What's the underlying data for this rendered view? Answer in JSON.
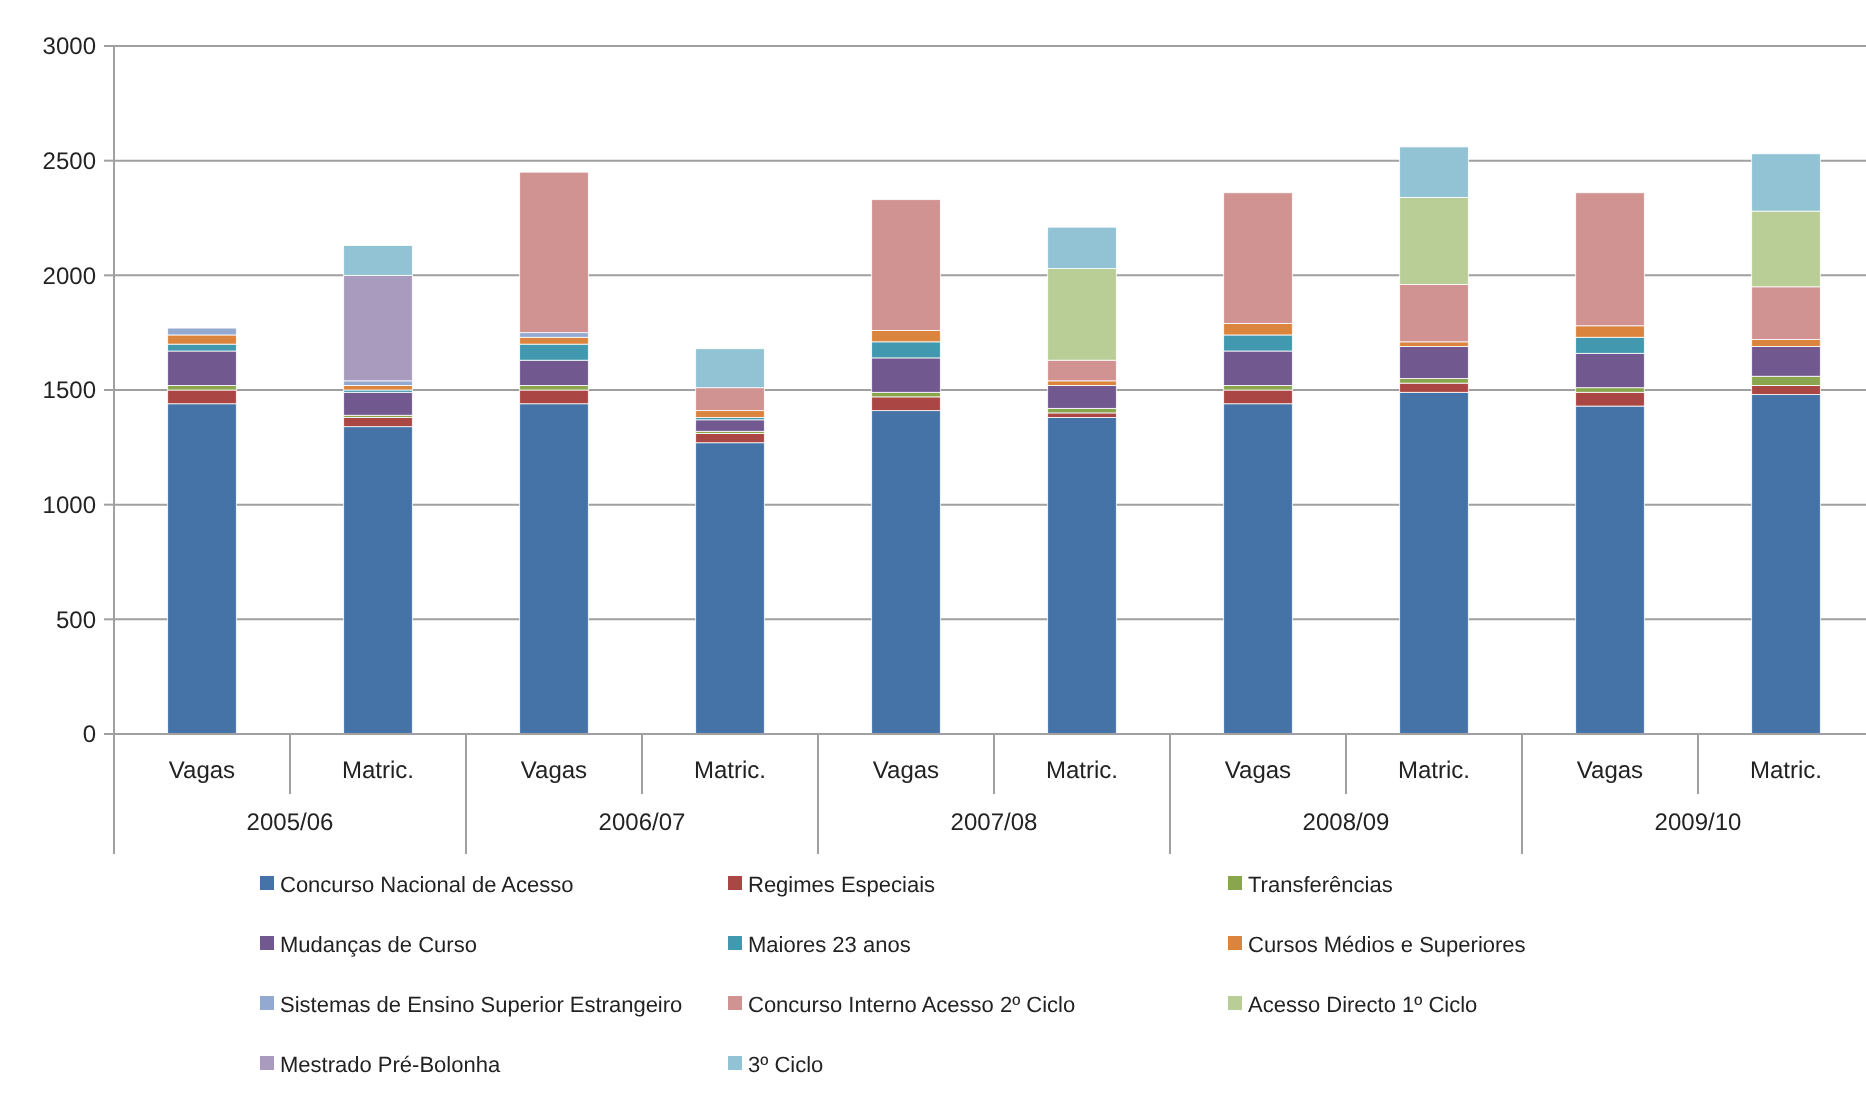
{
  "chart_data": {
    "type": "bar",
    "stacked": true,
    "categories": [
      "Vagas",
      "Matric.",
      "Vagas",
      "Matric.",
      "Vagas",
      "Matric.",
      "Vagas",
      "Matric.",
      "Vagas",
      "Matric."
    ],
    "annotations": [
      "2005/06",
      "2006/07",
      "2007/08",
      "2008/09",
      "2009/10"
    ],
    "ylim": [
      0,
      3000
    ],
    "yticks": [
      0,
      500,
      1000,
      1500,
      2000,
      2500,
      3000
    ],
    "grid": "y",
    "legend": "bottom",
    "series": [
      {
        "name": "Concurso Nacional de Acesso",
        "color": "#4572a7",
        "values": [
          1440,
          1340,
          1440,
          1270,
          1410,
          1380,
          1440,
          1490,
          1430,
          1480
        ]
      },
      {
        "name": "Regimes Especiais",
        "color": "#aa4643",
        "values": [
          60,
          40,
          60,
          40,
          60,
          20,
          60,
          40,
          60,
          40
        ]
      },
      {
        "name": "Transferências",
        "color": "#89a54e",
        "values": [
          20,
          10,
          20,
          10,
          20,
          20,
          20,
          20,
          20,
          40
        ]
      },
      {
        "name": "Mudanças de Curso",
        "color": "#71588f",
        "values": [
          150,
          100,
          110,
          50,
          150,
          100,
          150,
          140,
          150,
          130
        ]
      },
      {
        "name": "Maiores 23 anos",
        "color": "#4198af",
        "values": [
          30,
          10,
          70,
          10,
          70,
          null,
          70,
          null,
          70,
          null
        ]
      },
      {
        "name": "Cursos Médios e Superiores",
        "color": "#db843d",
        "values": [
          40,
          20,
          30,
          30,
          50,
          20,
          50,
          20,
          50,
          30
        ]
      },
      {
        "name": "Sistemas de Ensino Superior Estrangeiro",
        "color": "#93a9cf",
        "values": [
          30,
          20,
          20,
          null,
          null,
          null,
          null,
          null,
          null,
          null
        ]
      },
      {
        "name": "Concurso Interno Acesso 2º Ciclo",
        "color": "#d19392",
        "values": [
          null,
          null,
          700,
          100,
          570,
          90,
          570,
          250,
          580,
          230
        ]
      },
      {
        "name": "Acesso Directo 1º Ciclo",
        "color": "#b9cd96",
        "values": [
          null,
          null,
          null,
          null,
          null,
          400,
          null,
          380,
          null,
          330
        ]
      },
      {
        "name": "Mestrado Pré-Bolonha",
        "color": "#a99bbd",
        "values": [
          null,
          460,
          null,
          null,
          null,
          null,
          null,
          null,
          null,
          null
        ]
      },
      {
        "name": "3º Ciclo",
        "color": "#92c3d4",
        "values": [
          null,
          130,
          null,
          170,
          null,
          180,
          null,
          220,
          null,
          250
        ]
      }
    ]
  }
}
